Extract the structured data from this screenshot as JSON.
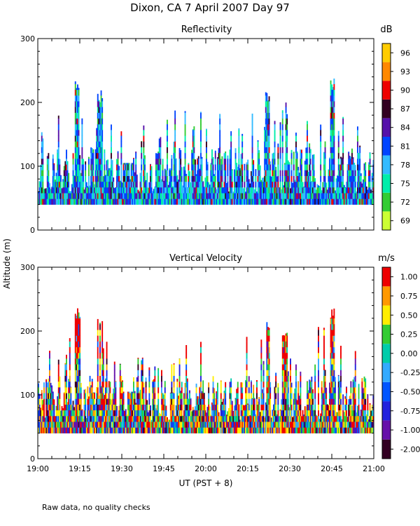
{
  "page_title": "Dixon, CA   7 April 2007   Day   97",
  "footer_note": "Raw data, no quality checks",
  "ylabel": "Altitude (m)",
  "xlabel": "UT   (PST + 8)",
  "chart_data": [
    {
      "type": "heatmap",
      "title": "Reflectivity",
      "ylabel": "Altitude (m)",
      "ylim": [
        0,
        300
      ],
      "yticks": [
        "0",
        "100",
        "200",
        "300"
      ],
      "x_range_minutes_utc": [
        1140,
        1260
      ],
      "data_altitude_floor_m": 40,
      "colorbar": {
        "unit": "dB",
        "labels": [
          "69",
          "72",
          "75",
          "78",
          "81",
          "84",
          "87",
          "90",
          "93",
          "96"
        ],
        "colors": [
          "#ccff33",
          "#33cc33",
          "#00eeaa",
          "#33bbff",
          "#0044ff",
          "#5511aa",
          "#330022",
          "#ee0000",
          "#ff8800",
          "#ffcc00"
        ]
      },
      "gust_peaks_m": [
        {
          "time": "19:14",
          "top": 240
        },
        {
          "time": "19:22",
          "top": 220
        },
        {
          "time": "20:22",
          "top": 220
        },
        {
          "time": "20:28",
          "top": 200
        },
        {
          "time": "20:45",
          "top": 240
        }
      ]
    },
    {
      "type": "heatmap",
      "title": "Vertical Velocity",
      "ylabel": "Altitude (m)",
      "xlabel": "UT   (PST + 8)",
      "ylim": [
        0,
        300
      ],
      "yticks": [
        "0",
        "100",
        "200",
        "300"
      ],
      "xticks": [
        "19:00",
        "19:15",
        "19:30",
        "19:45",
        "20:00",
        "20:15",
        "20:30",
        "20:45",
        "21:00"
      ],
      "x_range_minutes_utc": [
        1140,
        1260
      ],
      "data_altitude_floor_m": 40,
      "colorbar": {
        "unit": "m/s",
        "labels": [
          "-2.00",
          "-1.00",
          "-0.75",
          "-0.50",
          "-0.25",
          "0.00",
          "0.25",
          "0.50",
          "0.75",
          "1.00"
        ],
        "colors": [
          "#330022",
          "#6611aa",
          "#2222dd",
          "#0055ff",
          "#33aaff",
          "#00ccaa",
          "#33cc33",
          "#ffee00",
          "#ff9900",
          "#ee0000"
        ]
      },
      "gust_peaks_m": [
        {
          "time": "19:14",
          "top": 240
        },
        {
          "time": "19:22",
          "top": 220
        },
        {
          "time": "20:22",
          "top": 220
        },
        {
          "time": "20:28",
          "top": 200
        },
        {
          "time": "20:45",
          "top": 240
        }
      ]
    }
  ]
}
